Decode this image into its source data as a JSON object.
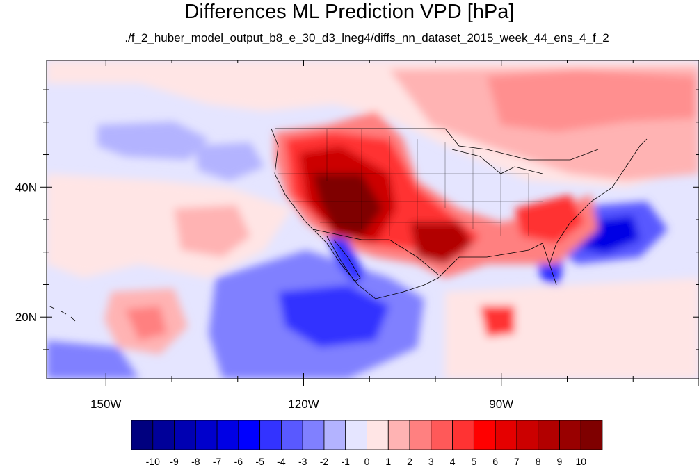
{
  "title": "Differences ML Prediction VPD [hPa]",
  "subtitle": "./f_2_huber_model_output_b8_e_30_d3_lneg4/diffs_nn_dataset_2015_week_44_ens_4_f_2",
  "map": {
    "lon_range": [
      -159,
      -60
    ],
    "lat_range": [
      10.5,
      59.5
    ],
    "x_ticks": [
      {
        "lon": -150,
        "label": "150W"
      },
      {
        "lon": -120,
        "label": "120W"
      },
      {
        "lon": -90,
        "label": "90W"
      }
    ],
    "y_ticks": [
      {
        "lat": 40,
        "label": "40N"
      },
      {
        "lat": 20,
        "label": "20N"
      }
    ]
  },
  "colorbar": {
    "labels": [
      "-10",
      "-9",
      "-8",
      "-7",
      "-6",
      "-5",
      "-4",
      "-3",
      "-2",
      "-1",
      "0",
      "1",
      "2",
      "3",
      "4",
      "5",
      "6",
      "7",
      "8",
      "9",
      "10"
    ],
    "colors": [
      "#00007f",
      "#000099",
      "#0000b2",
      "#0000cc",
      "#0000e5",
      "#0000ff",
      "#3333ff",
      "#5959ff",
      "#8080ff",
      "#b3b3ff",
      "#e5e5ff",
      "#ffe5e5",
      "#ffb3b3",
      "#ff8080",
      "#ff5959",
      "#ff3333",
      "#ff0000",
      "#e50000",
      "#cc0000",
      "#b20000",
      "#990000",
      "#7f0000"
    ]
  }
}
